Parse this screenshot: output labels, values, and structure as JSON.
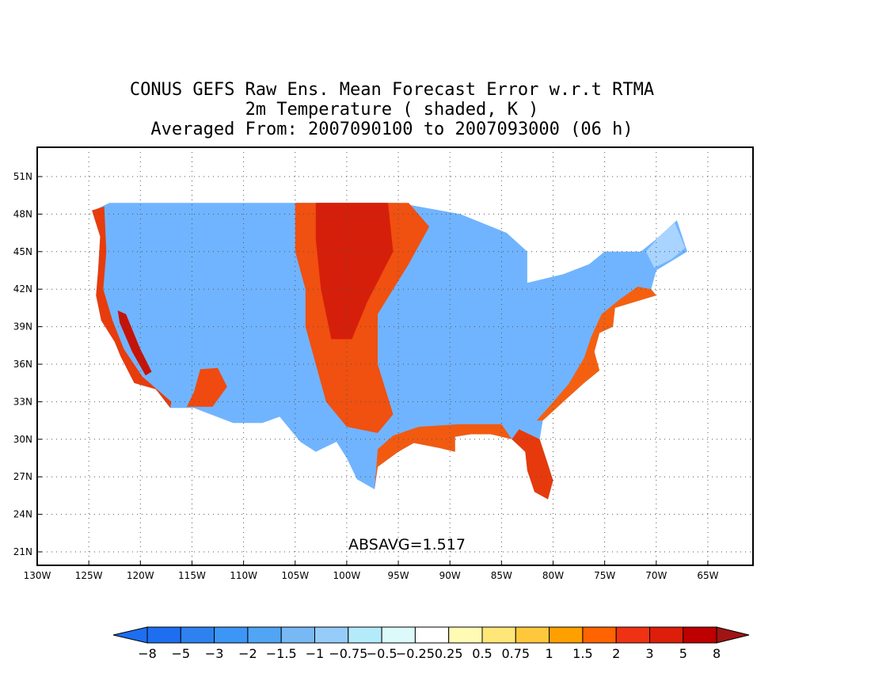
{
  "title": {
    "line1": "CONUS GEFS Raw Ens. Mean Forecast Error w.r.t RTMA",
    "line2": "2m Temperature ( shaded, K )",
    "line3": "Averaged From: 2007090100 to 2007093000 (06 h)"
  },
  "map": {
    "lon_range": [
      -130,
      -62
    ],
    "lat_range": [
      19.5,
      53
    ],
    "lat_ticks": [
      {
        "value": 51,
        "label": "51N"
      },
      {
        "value": 48,
        "label": "48N"
      },
      {
        "value": 45,
        "label": "45N"
      },
      {
        "value": 42,
        "label": "42N"
      },
      {
        "value": 39,
        "label": "39N"
      },
      {
        "value": 36,
        "label": "36N"
      },
      {
        "value": 33,
        "label": "33N"
      },
      {
        "value": 30,
        "label": "30N"
      },
      {
        "value": 27,
        "label": "27N"
      },
      {
        "value": 24,
        "label": "24N"
      },
      {
        "value": 21,
        "label": "21N"
      }
    ],
    "lon_ticks": [
      {
        "value": -130,
        "label": "130W"
      },
      {
        "value": -125,
        "label": "125W"
      },
      {
        "value": -120,
        "label": "120W"
      },
      {
        "value": -115,
        "label": "115W"
      },
      {
        "value": -110,
        "label": "110W"
      },
      {
        "value": -105,
        "label": "105W"
      },
      {
        "value": -100,
        "label": "100W"
      },
      {
        "value": -95,
        "label": "95W"
      },
      {
        "value": -90,
        "label": "90W"
      },
      {
        "value": -85,
        "label": "85W"
      },
      {
        "value": -80,
        "label": "80W"
      },
      {
        "value": -75,
        "label": "75W"
      },
      {
        "value": -70,
        "label": "70W"
      },
      {
        "value": -65,
        "label": "65W"
      }
    ],
    "grid": "dotted",
    "absavg_label": "ABSAVG=1.517",
    "regions": [
      {
        "name": "conus-land",
        "color": "#70b4ff",
        "points": [
          [
            -124.5,
            48.3
          ],
          [
            -123,
            48.9
          ],
          [
            -95,
            48.9
          ],
          [
            -89,
            48
          ],
          [
            -84.5,
            46.5
          ],
          [
            -82.5,
            45
          ],
          [
            -82.5,
            42.5
          ],
          [
            -79,
            43.2
          ],
          [
            -76.5,
            44
          ],
          [
            -75,
            45
          ],
          [
            -71.5,
            45
          ],
          [
            -70,
            46
          ],
          [
            -68,
            47.5
          ],
          [
            -67,
            45
          ],
          [
            -70,
            43.5
          ],
          [
            -70.5,
            42
          ],
          [
            -70,
            41.5
          ],
          [
            -72,
            41
          ],
          [
            -74,
            40.5
          ],
          [
            -74.2,
            39
          ],
          [
            -75.5,
            38.5
          ],
          [
            -76,
            37
          ],
          [
            -75.5,
            35.5
          ],
          [
            -77,
            34.5
          ],
          [
            -79,
            33
          ],
          [
            -81,
            31.5
          ],
          [
            -81.3,
            30
          ],
          [
            -80.5,
            28
          ],
          [
            -80,
            26.7
          ],
          [
            -80.5,
            25.2
          ],
          [
            -81.8,
            25.8
          ],
          [
            -82.5,
            27.5
          ],
          [
            -82.7,
            29
          ],
          [
            -84,
            30
          ],
          [
            -86,
            30.4
          ],
          [
            -88,
            30.4
          ],
          [
            -89.5,
            30.2
          ],
          [
            -89.5,
            29
          ],
          [
            -91,
            29.3
          ],
          [
            -93.5,
            29.7
          ],
          [
            -95,
            29
          ],
          [
            -97,
            27.8
          ],
          [
            -97.3,
            26
          ],
          [
            -99,
            26.8
          ],
          [
            -100,
            28.5
          ],
          [
            -101,
            29.8
          ],
          [
            -103,
            29
          ],
          [
            -104.5,
            29.8
          ],
          [
            -106.5,
            31.8
          ],
          [
            -108.2,
            31.3
          ],
          [
            -111,
            31.3
          ],
          [
            -114.8,
            32.5
          ],
          [
            -117.1,
            32.5
          ],
          [
            -118.5,
            34
          ],
          [
            -120.6,
            34.5
          ],
          [
            -121.9,
            36.6
          ],
          [
            -122.5,
            37.8
          ],
          [
            -123.8,
            39.5
          ],
          [
            -124.3,
            41.5
          ],
          [
            -124.1,
            43.5
          ],
          [
            -123.9,
            46.2
          ],
          [
            -124.7,
            48.3
          ]
        ]
      },
      {
        "name": "northern-plains-warm",
        "color": "#f05010",
        "points": [
          [
            -105,
            48.9
          ],
          [
            -94,
            48.9
          ],
          [
            -92,
            47
          ],
          [
            -94,
            44
          ],
          [
            -97,
            40
          ],
          [
            -97,
            36
          ],
          [
            -95.5,
            32
          ],
          [
            -97,
            30.5
          ],
          [
            -100,
            31
          ],
          [
            -102,
            33
          ],
          [
            -103,
            36
          ],
          [
            -104,
            39
          ],
          [
            -104,
            42
          ],
          [
            -105,
            45
          ]
        ]
      },
      {
        "name": "dakotas-core",
        "color": "#d61f0a",
        "points": [
          [
            -103,
            48.9
          ],
          [
            -96,
            48.9
          ],
          [
            -95.5,
            45
          ],
          [
            -98,
            41
          ],
          [
            -99.5,
            38
          ],
          [
            -101.5,
            38
          ],
          [
            -102.5,
            42
          ],
          [
            -103,
            46
          ]
        ]
      },
      {
        "name": "west-coast-warm",
        "color": "#e83c0c",
        "points": [
          [
            -124.7,
            48.3
          ],
          [
            -123.5,
            48.6
          ],
          [
            -123.3,
            45
          ],
          [
            -123.6,
            42
          ],
          [
            -122.7,
            39.5
          ],
          [
            -121.6,
            37.2
          ],
          [
            -119.8,
            35
          ],
          [
            -117,
            33
          ],
          [
            -117.1,
            32.5
          ],
          [
            -118.5,
            34
          ],
          [
            -120.6,
            34.5
          ],
          [
            -121.9,
            36.6
          ],
          [
            -122.5,
            37.8
          ],
          [
            -123.8,
            39.5
          ],
          [
            -124.3,
            41.5
          ],
          [
            -124.1,
            43.5
          ],
          [
            -123.9,
            46.2
          ]
        ]
      },
      {
        "name": "central-valley-warm",
        "color": "#c41409",
        "points": [
          [
            -122.2,
            40.3
          ],
          [
            -121.4,
            40
          ],
          [
            -120,
            37.2
          ],
          [
            -118.9,
            35.4
          ],
          [
            -119.5,
            35.1
          ],
          [
            -120.8,
            37
          ],
          [
            -122,
            39.3
          ]
        ]
      },
      {
        "name": "gulf-coast-warm",
        "color": "#f25a10",
        "points": [
          [
            -97.3,
            26
          ],
          [
            -97,
            27.8
          ],
          [
            -95,
            29
          ],
          [
            -93.5,
            29.7
          ],
          [
            -91,
            29.3
          ],
          [
            -89.5,
            29
          ],
          [
            -89.5,
            30.2
          ],
          [
            -88,
            30.4
          ],
          [
            -86,
            30.4
          ],
          [
            -84,
            30
          ],
          [
            -85,
            31.2
          ],
          [
            -89,
            31.2
          ],
          [
            -93,
            31
          ],
          [
            -95.5,
            30.3
          ],
          [
            -97,
            29.2
          ]
        ]
      },
      {
        "name": "florida-warm",
        "color": "#e63a0c",
        "points": [
          [
            -81.3,
            30
          ],
          [
            -80.5,
            28
          ],
          [
            -80,
            26.7
          ],
          [
            -80.5,
            25.2
          ],
          [
            -81.8,
            25.8
          ],
          [
            -82.5,
            27.5
          ],
          [
            -82.7,
            29
          ],
          [
            -84,
            30
          ],
          [
            -83.3,
            30.8
          ]
        ]
      },
      {
        "name": "atlantic-coast-warm",
        "color": "#f46010",
        "points": [
          [
            -81,
            31.5
          ],
          [
            -79,
            33
          ],
          [
            -77,
            34.5
          ],
          [
            -75.5,
            35.5
          ],
          [
            -76,
            37
          ],
          [
            -75.5,
            38.5
          ],
          [
            -74.2,
            39
          ],
          [
            -74,
            40.5
          ],
          [
            -72,
            41
          ],
          [
            -70,
            41.5
          ],
          [
            -70.5,
            42
          ],
          [
            -71.8,
            42.2
          ],
          [
            -73.5,
            41.2
          ],
          [
            -75.3,
            40
          ],
          [
            -76.3,
            38.2
          ],
          [
            -77,
            36.5
          ],
          [
            -78.5,
            34.4
          ],
          [
            -80.4,
            32.6
          ],
          [
            -81.6,
            31.5
          ]
        ]
      },
      {
        "name": "desert-sw-warm",
        "color": "#f04a10",
        "points": [
          [
            -115.5,
            32.6
          ],
          [
            -113,
            32.6
          ],
          [
            -111.6,
            34.2
          ],
          [
            -112.5,
            35.7
          ],
          [
            -114.2,
            35.6
          ],
          [
            -114.8,
            33.8
          ]
        ]
      },
      {
        "name": "maine-cold",
        "color": "#a8d4ff",
        "points": [
          [
            -71,
            45
          ],
          [
            -69.5,
            46.4
          ],
          [
            -68.2,
            47.3
          ],
          [
            -67.2,
            45.3
          ],
          [
            -68.5,
            44.4
          ],
          [
            -70.2,
            43.7
          ]
        ]
      }
    ]
  },
  "colorbar": {
    "colors": [
      "#1e6ef0",
      "#2d82f0",
      "#3c96f5",
      "#50a5f5",
      "#78b9f5",
      "#96ccfa",
      "#b4ebfa",
      "#dcfafa",
      "#ffffff",
      "#fffab4",
      "#ffe678",
      "#ffc83c",
      "#ffa000",
      "#ff6400",
      "#f03214",
      "#dc1e0a",
      "#be0000"
    ],
    "under_color": "#1e6ef0",
    "over_color": "#a01414",
    "labels": [
      "−8",
      "−5",
      "−3",
      "−2",
      "−1.5",
      "−1",
      "−0.75",
      "−0.5",
      "−0.25",
      "0.25",
      "0.5",
      "0.75",
      "1",
      "1.5",
      "2",
      "3",
      "5",
      "8"
    ]
  }
}
